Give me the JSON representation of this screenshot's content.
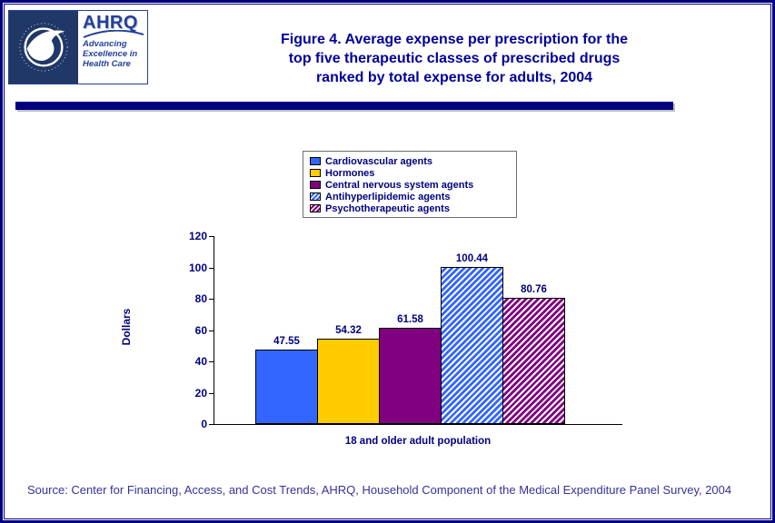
{
  "colors": {
    "page_border": "#000080",
    "title_text": "#00009A",
    "axis_text": "#000080",
    "source_text": "#333399",
    "header_rule": "#000080"
  },
  "header": {
    "hhs_logo_icon": "hhs-eagle-logo",
    "ahrq": {
      "name": "AHRQ",
      "tagline": [
        "Advancing",
        "Excellence in",
        "Health Care"
      ]
    },
    "title_lines": [
      "Figure 4. Average expense per prescription for the",
      "top five therapeutic classes of prescribed drugs",
      "ranked by total expense for adults, 2004"
    ]
  },
  "chart_data": {
    "type": "bar",
    "title": "Figure 4. Average expense per prescription for the top five therapeutic classes of prescribed drugs ranked by total expense for adults, 2004",
    "xlabel": "18 and older adult population",
    "ylabel": "Dollars",
    "ylim": [
      0,
      120
    ],
    "yticks": [
      0,
      20,
      40,
      60,
      80,
      100,
      120
    ],
    "grid": false,
    "legend_position": "top-center",
    "categories": [
      "18 and older adult population"
    ],
    "series": [
      {
        "name": "Cardiovascular agents",
        "value": 47.55,
        "label": "47.55",
        "color": "#3366FF",
        "pattern": "solid"
      },
      {
        "name": "Hormones",
        "value": 54.32,
        "label": "54.32",
        "color": "#FFCC00",
        "pattern": "solid"
      },
      {
        "name": "Central nervous system agents",
        "value": 61.58,
        "label": "61.58",
        "color": "#800080",
        "pattern": "solid"
      },
      {
        "name": "Antihyperlipidemic agents",
        "value": 100.44,
        "label": "100.44",
        "color": "#3366FF",
        "pattern": "diagonal-hatch"
      },
      {
        "name": "Psychotherapeutic agents",
        "value": 80.76,
        "label": "80.76",
        "color": "#800080",
        "pattern": "diagonal-hatch"
      }
    ]
  },
  "footer": {
    "source": "Source: Center for Financing, Access, and Cost Trends, AHRQ, Household Component of the Medical Expenditure Panel Survey, 2004"
  }
}
